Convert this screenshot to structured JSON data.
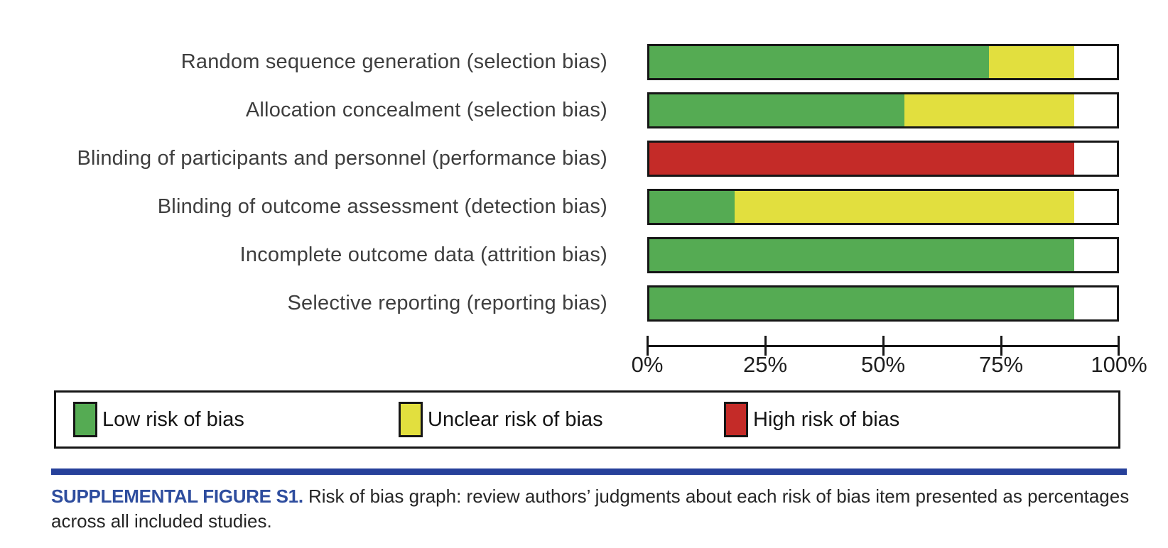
{
  "chart_data": {
    "type": "bar",
    "orientation": "horizontal",
    "stacked": true,
    "title": "Risk of bias graph",
    "categories": [
      "Random sequence generation (selection bias)",
      "Allocation concealment (selection bias)",
      "Blinding of participants and personnel (performance bias)",
      "Blinding of outcome assessment (detection bias)",
      "Incomplete outcome data (attrition bias)",
      "Selective reporting (reporting bias)"
    ],
    "series": [
      {
        "name": "Low risk of bias",
        "color": "#55ab53",
        "values": [
          72.7,
          54.5,
          0,
          18.2,
          90.9,
          90.9
        ]
      },
      {
        "name": "Unclear risk of bias",
        "color": "#e2df3e",
        "values": [
          18.2,
          36.4,
          0,
          72.7,
          0,
          0
        ]
      },
      {
        "name": "High risk of bias",
        "color": "#c42b28",
        "values": [
          0,
          0,
          90.9,
          0,
          0,
          0
        ]
      }
    ],
    "xlim": [
      0,
      100
    ],
    "x_ticks": [
      0,
      25,
      50,
      75,
      100
    ],
    "x_tick_labels": [
      "0%",
      "25%",
      "50%",
      "75%",
      "100%"
    ],
    "legend_position": "bottom",
    "grid": false
  },
  "caption": {
    "label": "SUPPLEMENTAL FIGURE S1.",
    "text_line1": "Risk of bias graph: review authors’ judgments about each risk of bias item presented as percentages",
    "text_line2": "across all included studies."
  },
  "colors": {
    "caption_label": "#2e4d9e",
    "divider_rule": "#26409a",
    "bar_outline": "#161616"
  }
}
